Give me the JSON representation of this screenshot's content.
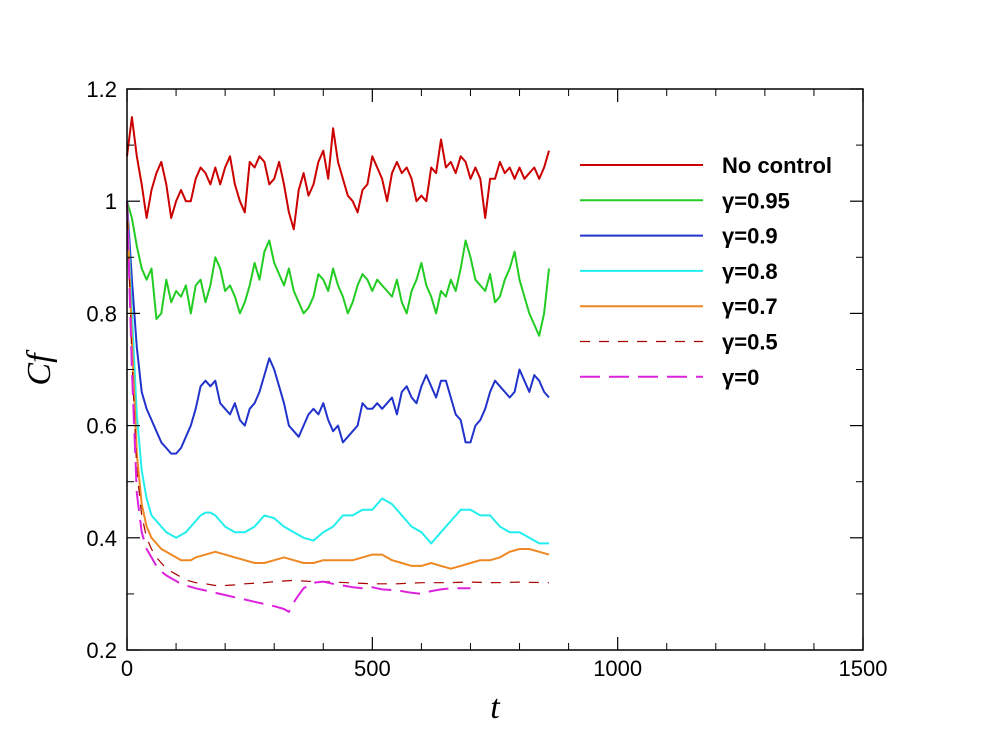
{
  "chart_data": {
    "type": "line",
    "xlabel": "t",
    "ylabel": "Cf",
    "xlim": [
      0,
      1500
    ],
    "ylim": [
      0.2,
      1.2
    ],
    "x_ticks": [
      0,
      500,
      1000,
      1500
    ],
    "y_ticks": [
      0.2,
      0.4,
      0.6,
      0.8,
      1.0,
      1.2
    ],
    "x_tick_labels": [
      "0",
      "500",
      "1000",
      "1500"
    ],
    "y_tick_labels": [
      "0.2",
      "0.4",
      "0.6",
      "0.8",
      "1",
      "1.2"
    ],
    "grid": false,
    "legend_position": "top-right",
    "series": [
      {
        "name": "No control",
        "color": "#cc0000",
        "dash": "solid",
        "x": [
          0,
          10,
          20,
          30,
          40,
          50,
          60,
          70,
          80,
          90,
          100,
          110,
          120,
          130,
          140,
          150,
          160,
          170,
          180,
          190,
          200,
          210,
          220,
          230,
          240,
          250,
          260,
          270,
          280,
          290,
          300,
          310,
          320,
          330,
          340,
          350,
          360,
          370,
          380,
          390,
          400,
          410,
          420,
          430,
          440,
          450,
          460,
          470,
          480,
          490,
          500,
          510,
          520,
          530,
          540,
          550,
          560,
          570,
          580,
          590,
          600,
          610,
          620,
          630,
          640,
          650,
          660,
          670,
          680,
          690,
          700,
          710,
          720,
          730,
          740,
          750,
          760,
          770,
          780,
          790,
          800,
          810,
          820,
          830,
          840,
          850,
          860
        ],
        "y": [
          1.08,
          1.15,
          1.08,
          1.03,
          0.97,
          1.02,
          1.05,
          1.07,
          1.03,
          0.97,
          1.0,
          1.02,
          1.0,
          1.0,
          1.04,
          1.06,
          1.05,
          1.03,
          1.06,
          1.03,
          1.06,
          1.08,
          1.03,
          1.0,
          0.98,
          1.07,
          1.06,
          1.08,
          1.07,
          1.03,
          1.04,
          1.07,
          1.03,
          0.98,
          0.95,
          1.02,
          1.05,
          1.01,
          1.03,
          1.07,
          1.09,
          1.04,
          1.13,
          1.07,
          1.04,
          1.01,
          1.0,
          0.98,
          1.02,
          1.03,
          1.08,
          1.06,
          1.04,
          1.0,
          1.05,
          1.07,
          1.05,
          1.06,
          1.04,
          1.0,
          1.01,
          1.0,
          1.06,
          1.05,
          1.11,
          1.06,
          1.07,
          1.05,
          1.08,
          1.07,
          1.04,
          1.06,
          1.04,
          0.97,
          1.04,
          1.04,
          1.07,
          1.05,
          1.06,
          1.04,
          1.06,
          1.04,
          1.05,
          1.06,
          1.04,
          1.06,
          1.09
        ]
      },
      {
        "name": "γ=0.95",
        "color": "#22cc22",
        "dash": "solid",
        "x": [
          0,
          10,
          20,
          30,
          40,
          50,
          60,
          70,
          80,
          90,
          100,
          110,
          120,
          130,
          140,
          150,
          160,
          170,
          180,
          190,
          200,
          210,
          220,
          230,
          240,
          250,
          260,
          270,
          280,
          290,
          300,
          310,
          320,
          330,
          340,
          350,
          360,
          370,
          380,
          390,
          400,
          410,
          420,
          430,
          440,
          450,
          460,
          470,
          480,
          490,
          500,
          510,
          520,
          530,
          540,
          550,
          560,
          570,
          580,
          590,
          600,
          610,
          620,
          630,
          640,
          650,
          660,
          670,
          680,
          690,
          700,
          710,
          720,
          730,
          740,
          750,
          760,
          770,
          780,
          790,
          800,
          810,
          820,
          830,
          840,
          850,
          860
        ],
        "y": [
          1.0,
          0.97,
          0.92,
          0.88,
          0.86,
          0.88,
          0.79,
          0.8,
          0.86,
          0.82,
          0.84,
          0.83,
          0.85,
          0.8,
          0.85,
          0.86,
          0.82,
          0.85,
          0.9,
          0.88,
          0.84,
          0.85,
          0.83,
          0.8,
          0.82,
          0.85,
          0.89,
          0.86,
          0.91,
          0.93,
          0.89,
          0.87,
          0.85,
          0.88,
          0.84,
          0.82,
          0.8,
          0.81,
          0.83,
          0.87,
          0.86,
          0.84,
          0.88,
          0.85,
          0.83,
          0.8,
          0.82,
          0.85,
          0.87,
          0.86,
          0.84,
          0.86,
          0.85,
          0.84,
          0.83,
          0.86,
          0.82,
          0.8,
          0.84,
          0.86,
          0.89,
          0.85,
          0.83,
          0.8,
          0.84,
          0.83,
          0.86,
          0.84,
          0.88,
          0.93,
          0.9,
          0.86,
          0.85,
          0.84,
          0.87,
          0.82,
          0.83,
          0.86,
          0.88,
          0.91,
          0.86,
          0.83,
          0.8,
          0.78,
          0.76,
          0.8,
          0.88
        ]
      },
      {
        "name": "γ=0.9",
        "color": "#2233cc",
        "dash": "solid",
        "x": [
          0,
          10,
          20,
          30,
          40,
          50,
          60,
          70,
          80,
          90,
          100,
          110,
          120,
          130,
          140,
          150,
          160,
          170,
          180,
          190,
          200,
          210,
          220,
          230,
          240,
          250,
          260,
          270,
          280,
          290,
          300,
          310,
          320,
          330,
          340,
          350,
          360,
          370,
          380,
          390,
          400,
          410,
          420,
          430,
          440,
          450,
          460,
          470,
          480,
          490,
          500,
          510,
          520,
          530,
          540,
          550,
          560,
          570,
          580,
          590,
          600,
          610,
          620,
          630,
          640,
          650,
          660,
          670,
          680,
          690,
          700,
          710,
          720,
          730,
          740,
          750,
          760,
          770,
          780,
          790,
          800,
          810,
          820,
          830,
          840,
          850,
          860
        ],
        "y": [
          1.0,
          0.86,
          0.74,
          0.66,
          0.63,
          0.61,
          0.59,
          0.57,
          0.56,
          0.55,
          0.55,
          0.56,
          0.58,
          0.6,
          0.63,
          0.67,
          0.68,
          0.67,
          0.68,
          0.64,
          0.63,
          0.62,
          0.64,
          0.61,
          0.6,
          0.63,
          0.64,
          0.66,
          0.69,
          0.72,
          0.7,
          0.67,
          0.64,
          0.6,
          0.59,
          0.58,
          0.6,
          0.62,
          0.63,
          0.62,
          0.64,
          0.61,
          0.59,
          0.6,
          0.57,
          0.58,
          0.59,
          0.6,
          0.64,
          0.63,
          0.63,
          0.64,
          0.63,
          0.64,
          0.65,
          0.62,
          0.66,
          0.67,
          0.65,
          0.64,
          0.67,
          0.69,
          0.67,
          0.65,
          0.68,
          0.68,
          0.65,
          0.62,
          0.61,
          0.57,
          0.57,
          0.6,
          0.61,
          0.63,
          0.66,
          0.68,
          0.67,
          0.66,
          0.65,
          0.66,
          0.7,
          0.68,
          0.66,
          0.69,
          0.68,
          0.66,
          0.65
        ]
      },
      {
        "name": "γ=0.8",
        "color": "#22eeee",
        "dash": "solid",
        "x": [
          0,
          10,
          20,
          30,
          40,
          50,
          60,
          70,
          80,
          90,
          100,
          110,
          120,
          130,
          140,
          150,
          160,
          170,
          180,
          190,
          200,
          220,
          240,
          260,
          280,
          300,
          320,
          340,
          360,
          380,
          400,
          420,
          440,
          460,
          480,
          500,
          520,
          540,
          560,
          580,
          600,
          620,
          640,
          660,
          680,
          700,
          720,
          740,
          760,
          780,
          800,
          820,
          840,
          860
        ],
        "y": [
          1.0,
          0.8,
          0.62,
          0.52,
          0.47,
          0.44,
          0.43,
          0.42,
          0.41,
          0.405,
          0.4,
          0.405,
          0.41,
          0.42,
          0.43,
          0.44,
          0.445,
          0.445,
          0.44,
          0.43,
          0.42,
          0.41,
          0.41,
          0.42,
          0.44,
          0.435,
          0.42,
          0.41,
          0.4,
          0.395,
          0.41,
          0.42,
          0.44,
          0.44,
          0.45,
          0.45,
          0.47,
          0.46,
          0.44,
          0.42,
          0.41,
          0.39,
          0.41,
          0.43,
          0.45,
          0.45,
          0.44,
          0.44,
          0.42,
          0.41,
          0.41,
          0.4,
          0.39,
          0.39
        ]
      },
      {
        "name": "γ=0.7",
        "color": "#ee8822",
        "dash": "solid",
        "x": [
          0,
          10,
          20,
          30,
          40,
          50,
          60,
          70,
          80,
          90,
          100,
          110,
          120,
          130,
          140,
          160,
          180,
          200,
          220,
          240,
          260,
          280,
          300,
          320,
          340,
          360,
          380,
          400,
          420,
          440,
          460,
          480,
          500,
          520,
          540,
          560,
          580,
          600,
          620,
          640,
          660,
          680,
          700,
          720,
          740,
          760,
          780,
          800,
          820,
          840,
          860
        ],
        "y": [
          1.0,
          0.75,
          0.55,
          0.46,
          0.42,
          0.4,
          0.39,
          0.38,
          0.375,
          0.37,
          0.365,
          0.36,
          0.36,
          0.36,
          0.365,
          0.37,
          0.375,
          0.37,
          0.365,
          0.36,
          0.355,
          0.355,
          0.36,
          0.365,
          0.36,
          0.355,
          0.355,
          0.36,
          0.36,
          0.36,
          0.36,
          0.365,
          0.37,
          0.37,
          0.36,
          0.355,
          0.35,
          0.35,
          0.355,
          0.35,
          0.345,
          0.35,
          0.355,
          0.36,
          0.36,
          0.365,
          0.375,
          0.38,
          0.38,
          0.375,
          0.37
        ]
      },
      {
        "name": "γ=0.5",
        "color": "#aa0000",
        "dash": "short",
        "x": [
          0,
          10,
          20,
          30,
          40,
          50,
          60,
          70,
          80,
          90,
          100,
          110,
          120,
          140,
          160,
          180,
          200,
          220,
          240,
          260,
          280,
          300,
          320,
          340,
          360,
          380,
          400,
          450,
          500,
          550,
          600,
          650,
          700,
          750,
          800,
          860
        ],
        "y": [
          1.0,
          0.72,
          0.52,
          0.44,
          0.4,
          0.38,
          0.365,
          0.355,
          0.345,
          0.34,
          0.335,
          0.33,
          0.325,
          0.32,
          0.318,
          0.315,
          0.315,
          0.316,
          0.318,
          0.319,
          0.32,
          0.322,
          0.323,
          0.324,
          0.323,
          0.322,
          0.322,
          0.32,
          0.318,
          0.318,
          0.32,
          0.32,
          0.321,
          0.32,
          0.321,
          0.32
        ]
      },
      {
        "name": "γ=0",
        "color": "#dd22dd",
        "dash": "long",
        "x": [
          0,
          10,
          20,
          30,
          40,
          50,
          60,
          70,
          80,
          90,
          100,
          110,
          120,
          140,
          160,
          180,
          200,
          220,
          240,
          260,
          280,
          300,
          320,
          330,
          340,
          350,
          360,
          380,
          400,
          420,
          440,
          460,
          480,
          500,
          520,
          540,
          560,
          580,
          600,
          620,
          640,
          660,
          680,
          700
        ],
        "y": [
          1.0,
          0.7,
          0.48,
          0.41,
          0.38,
          0.365,
          0.35,
          0.34,
          0.333,
          0.328,
          0.323,
          0.318,
          0.315,
          0.31,
          0.306,
          0.302,
          0.298,
          0.294,
          0.29,
          0.286,
          0.282,
          0.278,
          0.273,
          0.268,
          0.285,
          0.298,
          0.31,
          0.32,
          0.322,
          0.318,
          0.315,
          0.312,
          0.31,
          0.312,
          0.308,
          0.307,
          0.305,
          0.302,
          0.3,
          0.305,
          0.308,
          0.31,
          0.31,
          0.31
        ]
      }
    ]
  }
}
